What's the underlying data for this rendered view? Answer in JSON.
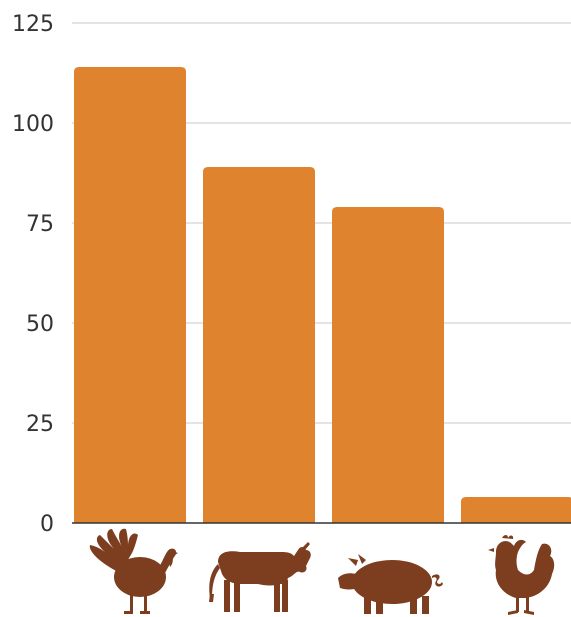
{
  "chart_data": {
    "type": "bar",
    "title": "",
    "xlabel": "",
    "ylabel": "",
    "categories": [
      "turkey",
      "cow",
      "pig",
      "chicken"
    ],
    "category_icons": [
      "turkey-icon",
      "cow-icon",
      "pig-icon",
      "chicken-icon"
    ],
    "values": [
      114,
      89,
      79,
      6.5
    ],
    "ylim": [
      0,
      125
    ],
    "yticks": [
      "0",
      "25",
      "50",
      "75",
      "100",
      "125"
    ],
    "grid": true,
    "legend": "none",
    "bar_color": "#E0832F",
    "icon_color": "#7D3D1F",
    "grid_color": "#C8C8C8",
    "axis_color": "#333333"
  }
}
